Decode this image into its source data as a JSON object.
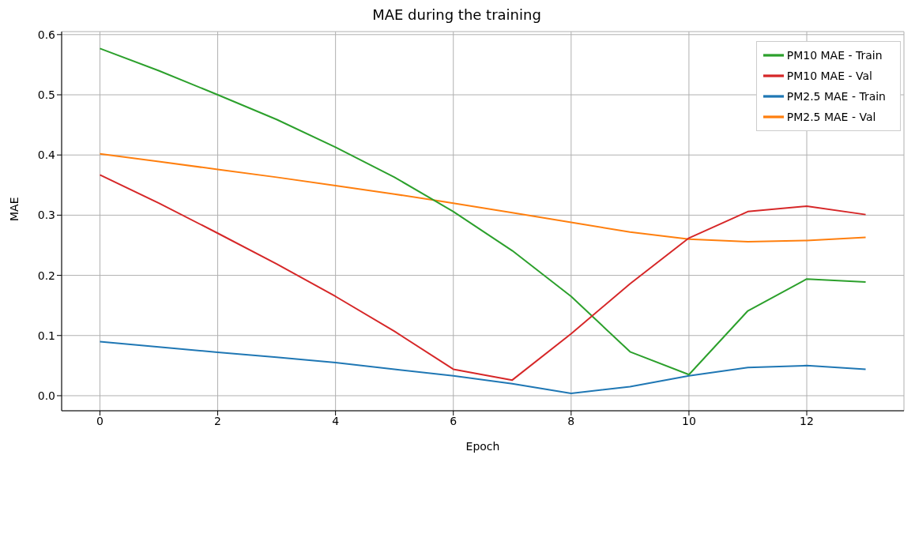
{
  "chart_data": {
    "type": "line",
    "title": "MAE during the training",
    "xlabel": "Epoch",
    "ylabel": "MAE",
    "x": [
      0,
      1,
      2,
      3,
      4,
      5,
      6,
      7,
      8,
      9,
      10,
      11,
      12,
      13
    ],
    "series": [
      {
        "name": "PM2.5 MAE - Train",
        "color": "#1f77b4",
        "values": [
          0.09,
          0.081,
          0.072,
          0.064,
          0.055,
          0.044,
          0.033,
          0.02,
          0.004,
          0.015,
          0.033,
          0.047,
          0.05,
          0.044
        ]
      },
      {
        "name": "PM2.5 MAE - Val",
        "color": "#ff7f0e",
        "values": [
          0.402,
          0.389,
          0.376,
          0.363,
          0.349,
          0.335,
          0.32,
          0.304,
          0.288,
          0.272,
          0.26,
          0.256,
          0.258,
          0.263
        ]
      },
      {
        "name": "PM10 MAE - Train",
        "color": "#2ca02c",
        "values": [
          0.577,
          0.54,
          0.5,
          0.459,
          0.413,
          0.363,
          0.306,
          0.241,
          0.165,
          0.073,
          0.035,
          0.141,
          0.194,
          0.189
        ]
      },
      {
        "name": "PM10 MAE - Val",
        "color": "#d62728",
        "values": [
          0.367,
          0.32,
          0.27,
          0.219,
          0.165,
          0.107,
          0.044,
          0.026,
          0.103,
          0.186,
          0.262,
          0.306,
          0.315,
          0.301
        ]
      }
    ],
    "xlim": [
      -0.65,
      13.65
    ],
    "xticks": [
      0,
      2,
      4,
      6,
      8,
      10,
      12
    ],
    "ylim": [
      -0.025,
      0.605
    ],
    "yticks": [
      {
        "value": 0,
        "label": "0.0"
      },
      0.1,
      0.2,
      0.3,
      0.4,
      0.5,
      0.6
    ],
    "grid": true,
    "legend": "top right",
    "marker": "none",
    "line_style": "solid"
  }
}
